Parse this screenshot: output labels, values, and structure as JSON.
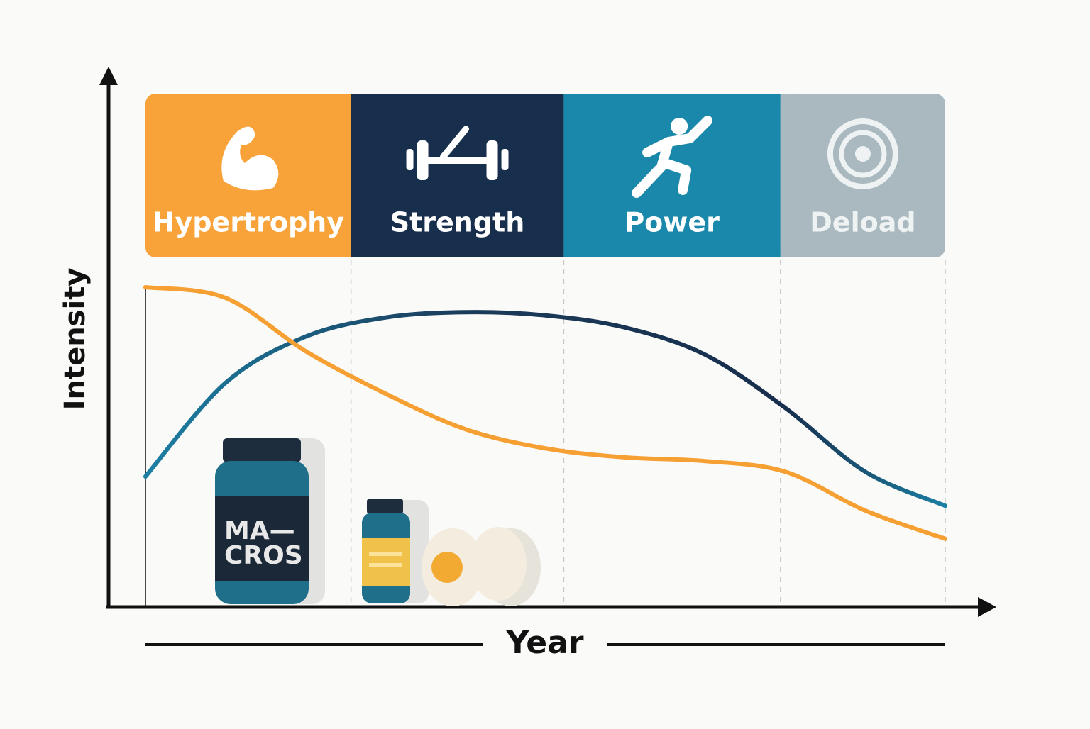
{
  "chart_data": {
    "type": "line",
    "x_label": "Year",
    "y_label": "Intensity",
    "xlim": [
      0,
      10
    ],
    "ylim": [
      0,
      100
    ],
    "phases": [
      {
        "name": "Hypertrophy",
        "start": 0,
        "end": 2.57,
        "color": "#f8a23a",
        "text_color": "#ffffff"
      },
      {
        "name": "Strength",
        "start": 2.57,
        "end": 5.23,
        "color": "#172e4c",
        "text_color": "#ffffff"
      },
      {
        "name": "Power",
        "start": 5.23,
        "end": 7.94,
        "color": "#1a88aa",
        "text_color": "#ffffff"
      },
      {
        "name": "Deload",
        "start": 7.94,
        "end": 10,
        "color": "#a9b9bf",
        "text_color": "#eef2f3"
      }
    ],
    "x": [
      0,
      1,
      2,
      3,
      4,
      5,
      6,
      7,
      8,
      9,
      10
    ],
    "series": [
      {
        "color": "#1b7fa3",
        "values": [
          24.4,
          42,
          50.7,
          54.3,
          55.3,
          54.7,
          52.4,
          47.3,
          37.3,
          25.3,
          18.9
        ]
      },
      {
        "color": "#f6a033",
        "values": [
          60,
          58,
          48,
          40,
          33.3,
          29.7,
          28,
          27.3,
          25.3,
          18,
          12.7
        ]
      }
    ],
    "illustration": {
      "jar_label": [
        "MA—",
        "CROS"
      ]
    }
  }
}
